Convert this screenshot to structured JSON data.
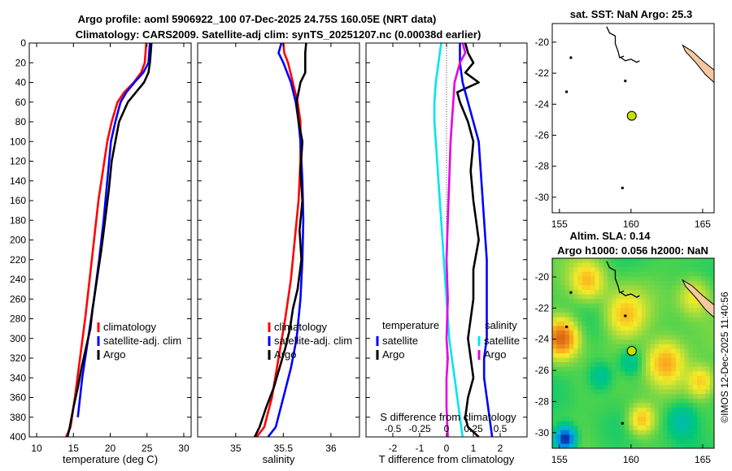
{
  "title_line1": "Argo profile: aoml 5906922_100 07-Dec-2025 24.75S 160.05E (NRT data)",
  "title_line2": "Climatology: CARS2009. Satellite-adj clim: synTS_20251207.nc (0.00038d earlier)",
  "stamp": "©IMOS 12-Dec-2025 11:40:56",
  "colors": {
    "climatology": "#ff0000",
    "satellite": "#0000ff",
    "argo": "#000000",
    "t_diff": "#00e5ee",
    "s_diff": "#e600e6",
    "land": "#f5c8a0",
    "dot": "#c8e000"
  },
  "chart_data": [
    {
      "type": "line",
      "name": "temperature-profile",
      "xlabel": "temperature (deg C)",
      "ylabel": "",
      "xlim": [
        9,
        31
      ],
      "ylim": [
        400,
        0
      ],
      "xticks": [
        10,
        15,
        20,
        25,
        30
      ],
      "yticks": [
        0,
        20,
        40,
        60,
        80,
        100,
        120,
        140,
        160,
        180,
        200,
        220,
        240,
        260,
        280,
        300,
        320,
        340,
        360,
        380,
        400
      ],
      "legend": [
        "climatology",
        "satellite-adj. clim",
        "Argo"
      ],
      "series": [
        {
          "name": "climatology",
          "color": "red",
          "x": [
            24.9,
            24.7,
            24.2,
            23.2,
            21.9,
            21.0,
            20.2,
            19.6,
            19.0,
            18.4,
            17.8,
            17.2,
            16.6,
            15.9,
            15.2,
            14.6,
            14.0
          ],
          "y": [
            0,
            20,
            30,
            40,
            50,
            60,
            80,
            100,
            130,
            160,
            200,
            240,
            280,
            320,
            360,
            390,
            400
          ]
        },
        {
          "name": "satellite-adj. clim",
          "color": "blue",
          "x": [
            25.4,
            25.3,
            25.2,
            24.5,
            23.3,
            22.2,
            21.4,
            20.7,
            20.1,
            19.6,
            19.1,
            18.5,
            17.8,
            17.0,
            16.2,
            15.6
          ],
          "y": [
            0,
            10,
            20,
            30,
            40,
            50,
            60,
            80,
            100,
            140,
            180,
            220,
            260,
            300,
            340,
            380
          ]
        },
        {
          "name": "Argo",
          "color": "black",
          "x": [
            25.6,
            25.5,
            25.4,
            25.2,
            24.6,
            23.5,
            22.4,
            21.8,
            21.2,
            20.7,
            20.2,
            19.8,
            19.3,
            18.8,
            18.2,
            17.6,
            17.3,
            16.7,
            16.1,
            15.6,
            15.0,
            14.5,
            14.2
          ],
          "y": [
            0,
            10,
            20,
            30,
            40,
            50,
            60,
            70,
            80,
            100,
            120,
            150,
            180,
            210,
            240,
            270,
            290,
            310,
            330,
            350,
            370,
            390,
            400
          ]
        }
      ]
    },
    {
      "type": "line",
      "name": "salinity-profile",
      "xlabel": "salinity",
      "ylabel": "",
      "xlim": [
        34.6,
        36.3
      ],
      "ylim": [
        400,
        0
      ],
      "xticks": [
        35,
        35.5,
        36
      ],
      "legend": [
        "climatology",
        "satellite-adj. clim",
        "Argo"
      ],
      "series": [
        {
          "name": "climatology",
          "color": "red",
          "x": [
            35.5,
            35.51,
            35.55,
            35.6,
            35.65,
            35.68,
            35.68,
            35.66,
            35.62,
            35.58,
            35.52,
            35.45,
            35.38,
            35.3,
            35.22
          ],
          "y": [
            0,
            10,
            20,
            40,
            60,
            80,
            120,
            160,
            200,
            240,
            280,
            320,
            360,
            390,
            400
          ]
        },
        {
          "name": "satellite-adj. clim",
          "color": "blue",
          "x": [
            35.48,
            35.45,
            35.5,
            35.58,
            35.63,
            35.66,
            35.68,
            35.7,
            35.71,
            35.7,
            35.68,
            35.64,
            35.58,
            35.5,
            35.42,
            35.34
          ],
          "y": [
            0,
            10,
            20,
            40,
            60,
            80,
            100,
            140,
            180,
            220,
            260,
            300,
            330,
            360,
            390,
            400
          ]
        },
        {
          "name": "Argo",
          "color": "black",
          "x": [
            35.74,
            35.73,
            35.73,
            35.68,
            35.64,
            35.66,
            35.7,
            35.68,
            35.7,
            35.67,
            35.69,
            35.65,
            35.6,
            35.57,
            35.52,
            35.46,
            35.4,
            35.32,
            35.25,
            35.2
          ],
          "y": [
            0,
            10,
            30,
            40,
            60,
            80,
            100,
            130,
            160,
            190,
            220,
            250,
            270,
            290,
            310,
            330,
            350,
            370,
            390,
            400
          ]
        }
      ]
    },
    {
      "type": "line",
      "name": "difference-profile",
      "xlabel": "T difference from climatology",
      "xlabel_top": "S difference from climatology",
      "xlim": [
        -3,
        3
      ],
      "ylim": [
        400,
        0
      ],
      "xticks": [
        -2,
        -1,
        0,
        1,
        2
      ],
      "xticks_top": [
        {
          "v": -2,
          "label": "-0.5"
        },
        {
          "v": -1,
          "label": "-0.25"
        },
        {
          "v": 0,
          "label": "0"
        },
        {
          "v": 1,
          "label": "0.25"
        },
        {
          "v": 2,
          "label": "0.5"
        }
      ],
      "legend_left_title": "temperature",
      "legend_right_title": "salinity",
      "legend_left": [
        "satellite",
        "Argo"
      ],
      "legend_right": [
        "satellite",
        "Argo"
      ],
      "series": [
        {
          "name": "T satellite",
          "color": "cyan",
          "x": [
            -0.2,
            -0.3,
            -0.4,
            -0.45,
            -0.45,
            -0.4,
            -0.3,
            -0.2,
            -0.1,
            0.0,
            0.1,
            0.2,
            0.3,
            0.4,
            0.5,
            0.6
          ],
          "y": [
            0,
            20,
            40,
            60,
            80,
            100,
            140,
            180,
            220,
            260,
            300,
            320,
            340,
            360,
            380,
            400
          ]
        },
        {
          "name": "T Argo",
          "color": "black",
          "x": [
            0.7,
            0.8,
            1.0,
            0.7,
            1.2,
            0.4,
            0.5,
            0.8,
            1.0,
            0.9,
            1.0,
            1.2,
            1.0,
            1.0,
            0.9,
            0.8,
            0.9,
            1.0,
            0.8,
            0.7,
            0.8,
            1.0,
            1.2
          ],
          "y": [
            0,
            10,
            20,
            30,
            40,
            50,
            60,
            80,
            100,
            130,
            160,
            200,
            230,
            260,
            280,
            300,
            320,
            340,
            360,
            380,
            390,
            395,
            400
          ]
        },
        {
          "name": "S satellite",
          "color": "blue",
          "x": [
            0.5,
            0.5,
            0.6,
            0.8,
            1.0,
            1.2,
            1.3,
            1.4,
            1.5,
            1.5,
            1.5,
            1.4,
            1.4,
            1.5,
            1.6,
            1.7
          ],
          "y": [
            0,
            20,
            40,
            60,
            80,
            100,
            140,
            180,
            220,
            260,
            300,
            320,
            340,
            360,
            380,
            400
          ]
        },
        {
          "name": "S Argo",
          "color": "magenta",
          "x": [
            0.6,
            0.7,
            0.5,
            0.4,
            0.3,
            0.25,
            0.2,
            0.15,
            0.1,
            0.05,
            0.0,
            0.05,
            0.0,
            0.05,
            0.0,
            0.0,
            0.05
          ],
          "y": [
            0,
            10,
            20,
            30,
            40,
            60,
            80,
            100,
            140,
            180,
            220,
            260,
            300,
            320,
            340,
            370,
            400
          ]
        }
      ]
    },
    {
      "type": "map",
      "name": "sst-map",
      "title": "sat. SST: NaN Argo: 25.3",
      "xlim": [
        154.5,
        165.8
      ],
      "ylim": [
        -31,
        -18.8
      ],
      "xticks": [
        155,
        160,
        165
      ],
      "yticks": [
        -20,
        -22,
        -24,
        -26,
        -28,
        -30
      ],
      "argo_position": {
        "lon": 160.05,
        "lat": -24.75
      }
    },
    {
      "type": "heatmap",
      "name": "sla-map",
      "title_line1": "Altim. SLA: 0.14",
      "title_line2": "Argo h1000: 0.056 h2000: NaN",
      "xlim": [
        154.5,
        165.8
      ],
      "ylim": [
        -31,
        -18.8
      ],
      "xticks": [
        155,
        160,
        165
      ],
      "yticks": [
        -20,
        -22,
        -24,
        -26,
        -28,
        -30
      ],
      "argo_position": {
        "lon": 160.05,
        "lat": -24.75
      }
    }
  ]
}
